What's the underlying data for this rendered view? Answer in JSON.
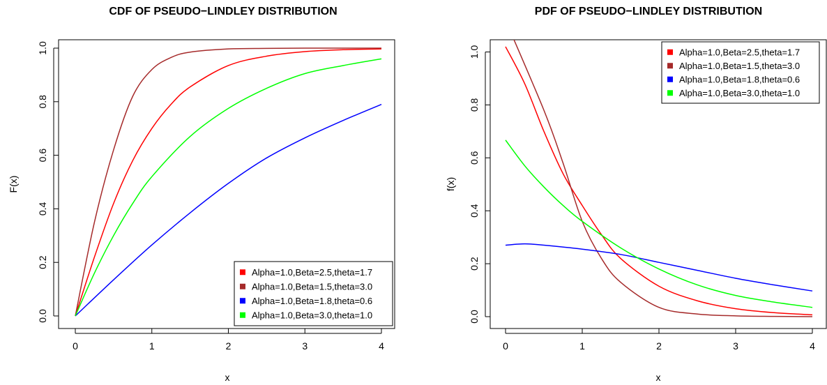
{
  "chart_data": [
    {
      "type": "line",
      "title": "CDF OF PSEUDO−LINDLEY DISTRIBUTION",
      "xlabel": "x",
      "ylabel": "F(x)",
      "xlim": [
        0,
        4
      ],
      "ylim": [
        0,
        1
      ],
      "x_ticks": [
        "0",
        "1",
        "2",
        "3",
        "4"
      ],
      "y_ticks": [
        "0.0",
        "0.2",
        "0.4",
        "0.6",
        "0.8",
        "1.0"
      ],
      "grid": false,
      "legend_position": "bottom-right",
      "series": [
        {
          "name": "Alpha=1.0,Beta=2.5,theta=1.7",
          "color": "#ff0000",
          "x": [
            0,
            0.25,
            0.5,
            0.75,
            1,
            1.25,
            1.5,
            2,
            2.5,
            3,
            3.5,
            4
          ],
          "values": [
            0,
            0.22,
            0.42,
            0.58,
            0.7,
            0.79,
            0.855,
            0.935,
            0.97,
            0.987,
            0.994,
            0.997
          ]
        },
        {
          "name": "Alpha=1.0,Beta=1.5,theta=3.0",
          "color": "#a52a2a",
          "x": [
            0,
            0.25,
            0.5,
            0.75,
            1,
            1.25,
            1.5,
            2,
            2.5,
            3,
            3.5,
            4
          ],
          "values": [
            0,
            0.35,
            0.62,
            0.82,
            0.92,
            0.965,
            0.985,
            0.997,
            0.999,
            1.0,
            1.0,
            1.0
          ]
        },
        {
          "name": "Alpha=1.0,Beta=1.8,theta=0.6",
          "color": "#0000ff",
          "x": [
            0,
            0.5,
            1,
            1.5,
            2,
            2.5,
            3,
            3.5,
            4
          ],
          "values": [
            0,
            0.135,
            0.265,
            0.385,
            0.495,
            0.59,
            0.665,
            0.73,
            0.79
          ]
        },
        {
          "name": "Alpha=1.0,Beta=3.0,theta=1.0",
          "color": "#00ff00",
          "x": [
            0,
            0.25,
            0.5,
            0.75,
            1,
            1.5,
            2,
            2.5,
            3,
            3.5,
            4
          ],
          "values": [
            0,
            0.16,
            0.3,
            0.42,
            0.52,
            0.67,
            0.775,
            0.85,
            0.905,
            0.935,
            0.96
          ]
        }
      ]
    },
    {
      "type": "line",
      "title": "PDF OF PSEUDO−LINDLEY DISTRIBUTION",
      "xlabel": "x",
      "ylabel": "f(x)",
      "xlim": [
        0,
        4
      ],
      "ylim": [
        0,
        1.05
      ],
      "x_ticks": [
        "0",
        "1",
        "2",
        "3",
        "4"
      ],
      "y_ticks": [
        "0.0",
        "0.2",
        "0.4",
        "0.6",
        "0.8",
        "1.0"
      ],
      "grid": false,
      "legend_position": "top-right",
      "series": [
        {
          "name": "Alpha=1.0,Beta=2.5,theta=1.7",
          "color": "#ff0000",
          "x": [
            0,
            0.25,
            0.5,
            0.75,
            1,
            1.25,
            1.5,
            2,
            2.5,
            3,
            3.5,
            4
          ],
          "values": [
            1.02,
            0.88,
            0.7,
            0.54,
            0.42,
            0.31,
            0.22,
            0.115,
            0.06,
            0.03,
            0.015,
            0.007
          ]
        },
        {
          "name": "Alpha=1.0,Beta=1.5,theta=3.0",
          "color": "#a52a2a",
          "x": [
            0,
            0.5,
            0.75,
            1,
            1.25,
            1.5,
            2,
            2.5,
            3,
            3.5,
            4
          ],
          "values": [
            1.12,
            0.78,
            0.58,
            0.36,
            0.22,
            0.13,
            0.035,
            0.01,
            0.003,
            0.001,
            0.0
          ]
        },
        {
          "name": "Alpha=1.0,Beta=1.8,theta=0.6",
          "color": "#0000ff",
          "x": [
            0,
            0.25,
            0.5,
            1,
            1.5,
            2,
            2.5,
            3,
            3.5,
            4
          ],
          "values": [
            0.27,
            0.275,
            0.27,
            0.255,
            0.235,
            0.205,
            0.175,
            0.145,
            0.12,
            0.097
          ]
        },
        {
          "name": "Alpha=1.0,Beta=3.0,theta=1.0",
          "color": "#00ff00",
          "x": [
            0,
            0.25,
            0.5,
            0.75,
            1,
            1.5,
            2,
            2.5,
            3,
            3.5,
            4
          ],
          "values": [
            0.667,
            0.57,
            0.49,
            0.42,
            0.36,
            0.26,
            0.18,
            0.12,
            0.08,
            0.055,
            0.035
          ]
        }
      ]
    }
  ]
}
